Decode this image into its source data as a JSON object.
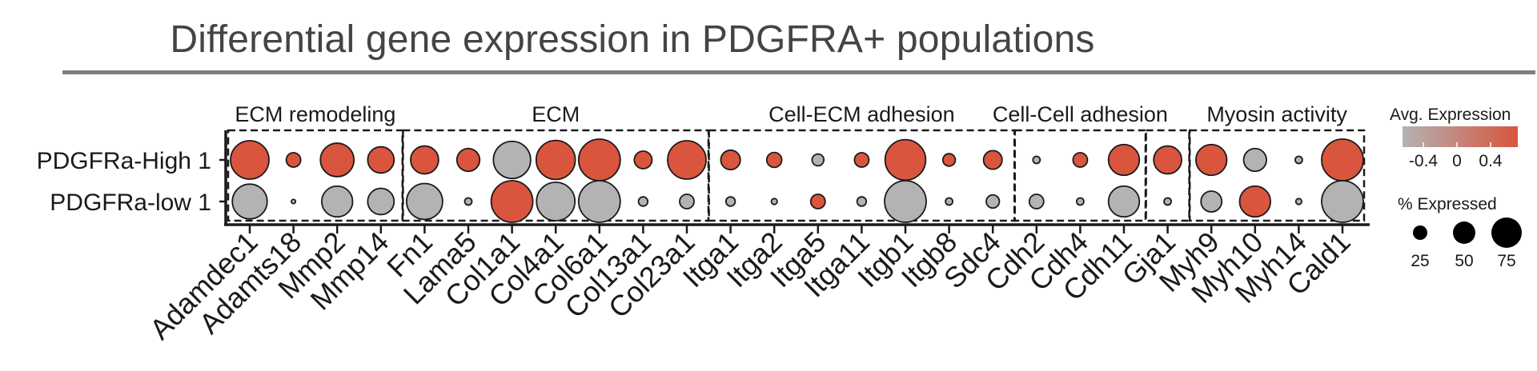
{
  "title": "Differential gene expression in PDGFRA+ populations",
  "colors": {
    "low": "#b3b3b3",
    "high": "#d9553e",
    "frame": "#1a1a1a"
  },
  "chart_data": {
    "type": "dot",
    "title": "Differential gene expression in PDGFRA+ populations",
    "rows": [
      "PDGFRa-High 1",
      "PDGFRa-low 1"
    ],
    "genes": [
      "Adamdec1",
      "Adamts18",
      "Mmp2",
      "Mmp14",
      "Fn1",
      "Lama5",
      "Col1a1",
      "Col4a1",
      "Col6a1",
      "Col13a1",
      "Col23a1",
      "Itga1",
      "Itga2",
      "Itga5",
      "Itga11",
      "Itgb1",
      "Itgb8",
      "Sdc4",
      "Cdh2",
      "Cdh4",
      "Cdh11",
      "Gja1",
      "Myh9",
      "Myh10",
      "Myh14",
      "Cald1"
    ],
    "groups": [
      {
        "label": "ECM remodeling",
        "start": 0,
        "end": 3
      },
      {
        "label": "ECM",
        "start": 4,
        "end": 10
      },
      {
        "label": "Cell-ECM adhesion",
        "start": 11,
        "end": 17
      },
      {
        "label": "Cell-Cell adhesion",
        "start": 18,
        "end": 20
      },
      {
        "label": "",
        "start": 21,
        "end": 21
      },
      {
        "label": "Myosin activity",
        "start": 22,
        "end": 25
      }
    ],
    "pct_expressed": [
      [
        85,
        12,
        65,
        40,
        45,
        30,
        80,
        88,
        100,
        18,
        85,
        22,
        13,
        8,
        12,
        95,
        9,
        20,
        3,
        12,
        55,
        45,
        55,
        30,
        3,
        100
      ],
      [
        70,
        1,
        55,
        40,
        75,
        3,
        100,
        85,
        100,
        5,
        12,
        5,
        2,
        12,
        5,
        100,
        3,
        10,
        12,
        3,
        55,
        3,
        25,
        55,
        2,
        100
      ]
    ],
    "avg_expression": [
      [
        0.5,
        0.5,
        0.5,
        0.5,
        0.5,
        0.5,
        -0.5,
        0.5,
        0.5,
        0.5,
        0.5,
        0.5,
        0.5,
        -0.5,
        0.5,
        0.5,
        0.5,
        0.5,
        -0.5,
        0.5,
        0.5,
        0.5,
        0.5,
        -0.5,
        -0.5,
        0.5
      ],
      [
        -0.5,
        -0.5,
        -0.5,
        -0.5,
        -0.5,
        -0.5,
        0.5,
        -0.5,
        -0.5,
        -0.5,
        -0.5,
        -0.5,
        -0.5,
        0.5,
        -0.5,
        -0.5,
        -0.5,
        -0.5,
        -0.5,
        -0.5,
        -0.5,
        -0.5,
        -0.5,
        0.5,
        -0.5,
        -0.5
      ]
    ],
    "color_legend": {
      "title": "Avg. Expression",
      "ticks": [
        "-0.4",
        "0",
        "0.4"
      ],
      "range": [
        -0.5,
        0.5
      ]
    },
    "size_legend": {
      "title": "% Expressed",
      "values": [
        25,
        50,
        75
      ]
    }
  }
}
